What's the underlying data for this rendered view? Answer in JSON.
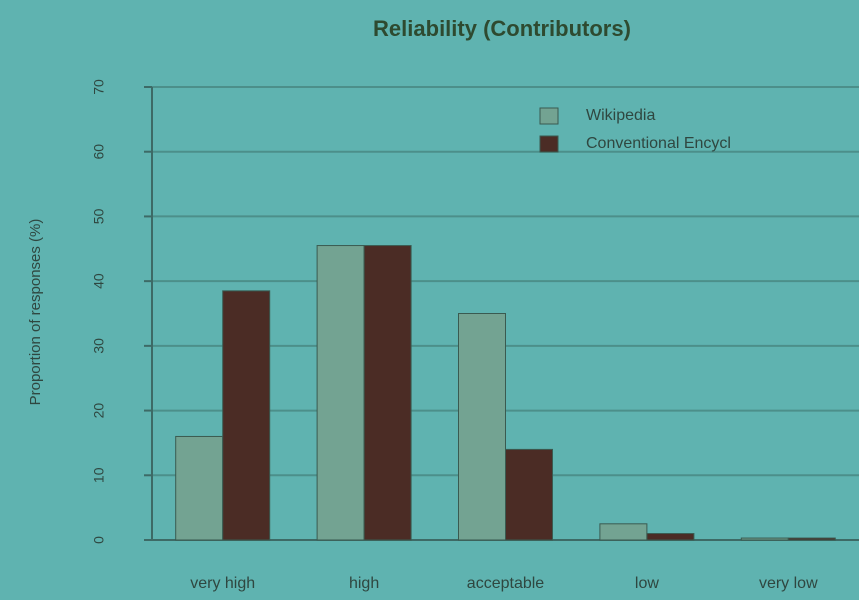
{
  "chart_data": {
    "type": "bar",
    "title": "Reliability (Contributors)",
    "y_label": "Proportion of responses (%)",
    "categories": [
      "very high",
      "high",
      "acceptable",
      "low",
      "very low"
    ],
    "series": [
      {
        "name": "Wikipedia",
        "color": "#73a392",
        "values": [
          16,
          45.5,
          35,
          2.5,
          0.3
        ]
      },
      {
        "name": "Conventional Encycl",
        "color": "#4b2c25",
        "values": [
          38.5,
          45.5,
          14,
          1,
          0.3
        ]
      }
    ],
    "ylim": [
      0,
      70
    ],
    "yticks": [
      0,
      10,
      20,
      30,
      40,
      50,
      60,
      70
    ],
    "grid": true,
    "legend": "upper right"
  }
}
